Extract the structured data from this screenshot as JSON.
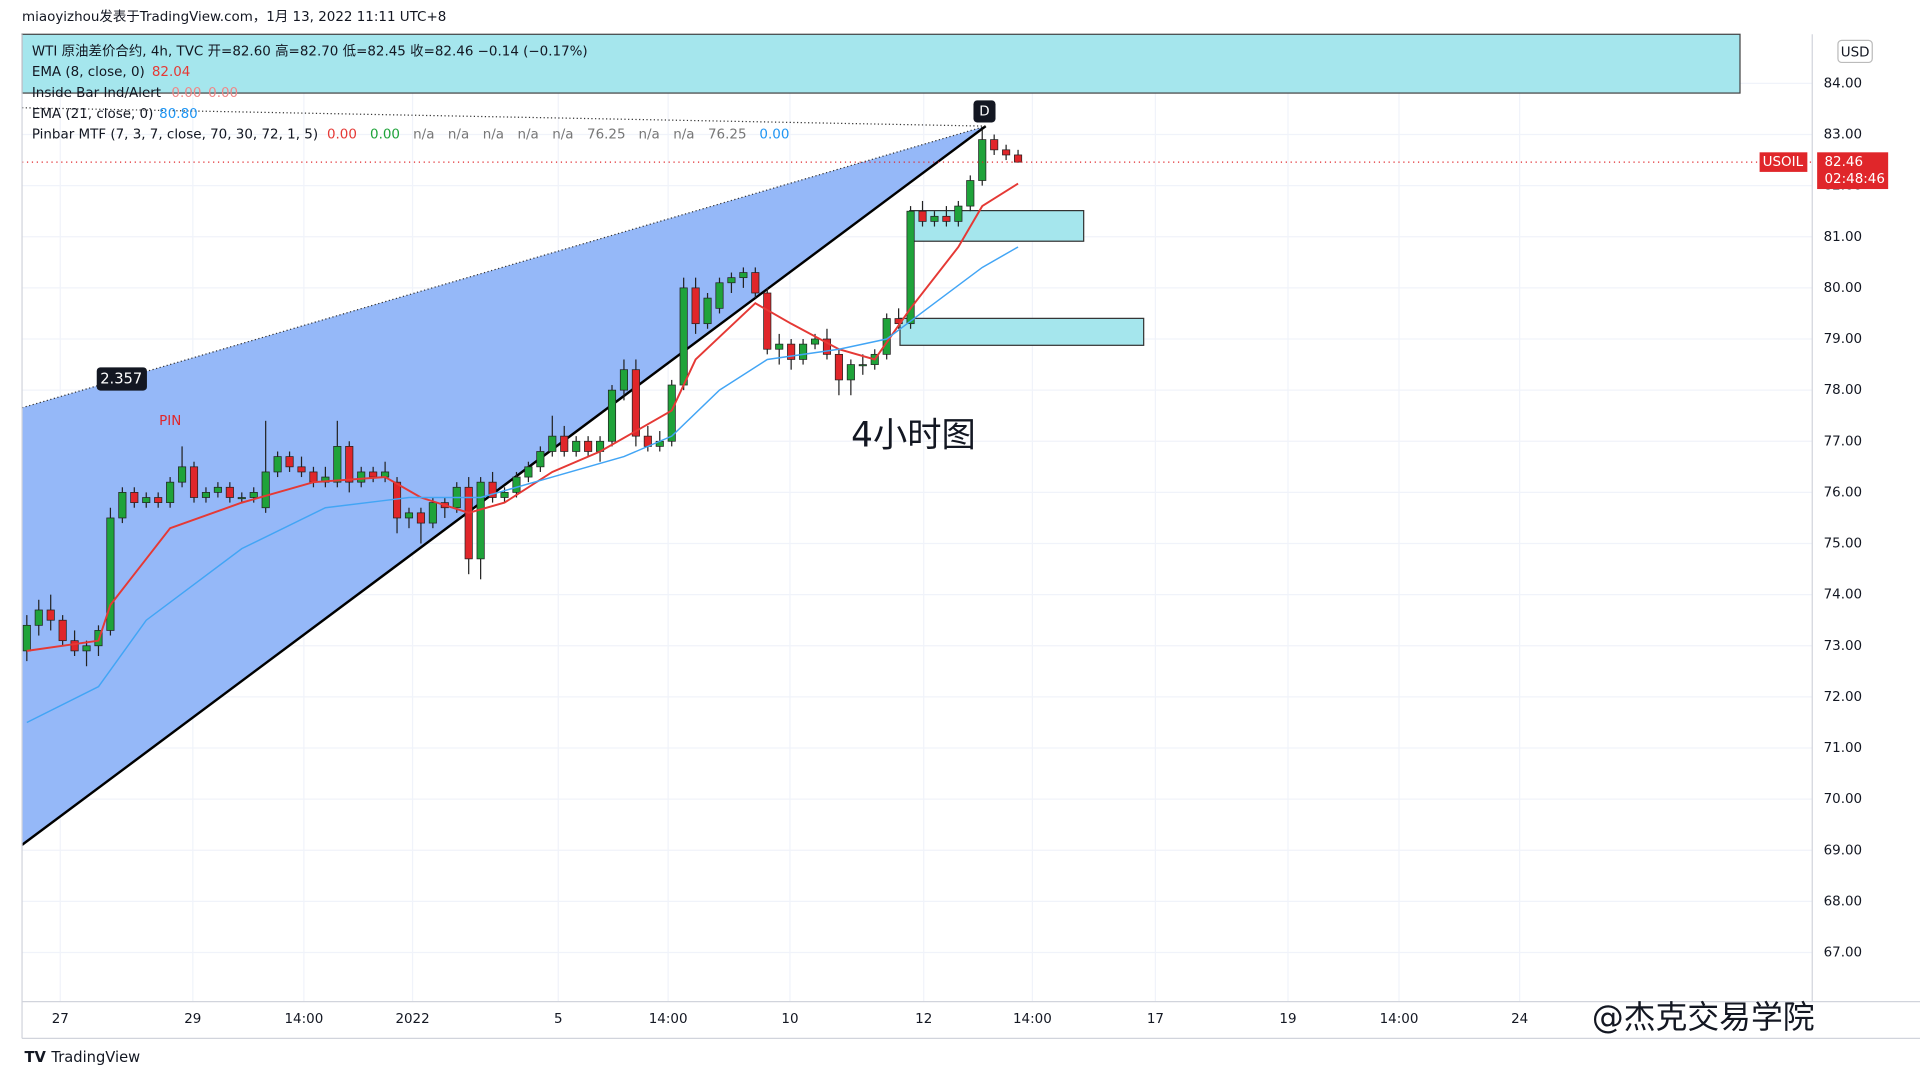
{
  "header": {
    "text": "miaoyizhou发表于TradingView.com，1月 13, 2022 11:11 UTC+8",
    "currency": "USD"
  },
  "legend": {
    "main": "WTI 原油差价合约, 4h, TVC  开=82.60  高=82.70  低=82.45  收=82.46  −0.14 (−0.17%)",
    "ema8_value": "82.04",
    "inside_bar": "Inside Bar Ind/Alert",
    "inside_bar_values": [
      "0.00",
      "0.00"
    ],
    "ema21_value": "80.80",
    "pinbar": "Pinbar MTF (7, 3, 7, close, 70, 30, 72, 1, 5)",
    "pinbar_values": [
      "0.00",
      "0.00",
      "n/a",
      "n/a",
      "n/a",
      "n/a",
      "n/a",
      "76.25",
      "n/a",
      "n/a",
      "76.25",
      "0.00"
    ],
    "pinbar_colors": [
      "#e53935",
      "#1fa33a",
      "#777",
      "#777",
      "#777",
      "#777",
      "#777",
      "#777",
      "#777",
      "#777",
      "#777",
      "#2196f3"
    ]
  },
  "chart_data": {
    "type": "candlestick",
    "symbol": "USOIL",
    "x": [
      0,
      1,
      2,
      3,
      4,
      5,
      6,
      7,
      8,
      9,
      10,
      11,
      12,
      13,
      14,
      15,
      16,
      17,
      18,
      19,
      20,
      21,
      22,
      23,
      24,
      25,
      26,
      27,
      28,
      29,
      30,
      31,
      32,
      33,
      34,
      35,
      36,
      37,
      38,
      39,
      40,
      41,
      42,
      43,
      44,
      45,
      46,
      47,
      48,
      49,
      50,
      51,
      52,
      53,
      54,
      55,
      56,
      57,
      58,
      59,
      60,
      61,
      62,
      63,
      64,
      65,
      66,
      67,
      68,
      69,
      70,
      71,
      72,
      73,
      74,
      75,
      76,
      77,
      78,
      79,
      80,
      81,
      82,
      83
    ],
    "open": [
      72.9,
      73.4,
      73.7,
      73.5,
      73.1,
      72.9,
      73.0,
      73.3,
      75.5,
      76.0,
      75.8,
      75.9,
      75.8,
      76.2,
      76.5,
      75.9,
      76.0,
      76.1,
      75.9,
      75.9,
      75.7,
      76.4,
      76.7,
      76.5,
      76.4,
      76.2,
      76.2,
      76.9,
      76.2,
      76.4,
      76.3,
      76.2,
      75.5,
      75.6,
      75.4,
      75.8,
      75.7,
      76.1,
      74.7,
      76.2,
      75.9,
      76.0,
      76.3,
      76.5,
      76.8,
      77.1,
      76.8,
      77.0,
      76.8,
      77.0,
      78.0,
      78.4,
      77.1,
      76.9,
      77.0,
      78.1,
      80.0,
      79.3,
      79.6,
      80.1,
      80.2,
      80.3,
      79.9,
      78.8,
      78.9,
      78.6,
      78.9,
      79.0,
      78.7,
      78.2,
      78.5,
      78.5,
      78.7,
      79.4,
      79.3,
      81.5,
      81.3,
      81.4,
      81.3,
      81.6,
      82.1,
      82.9,
      82.7,
      82.6
    ],
    "high": [
      73.6,
      73.9,
      74.0,
      73.6,
      73.3,
      73.1,
      73.4,
      75.7,
      76.1,
      76.1,
      76.0,
      76.0,
      76.3,
      76.9,
      76.6,
      76.1,
      76.2,
      76.2,
      76.0,
      76.1,
      77.4,
      76.8,
      76.8,
      76.7,
      76.5,
      76.5,
      77.4,
      77.0,
      76.5,
      76.5,
      76.6,
      76.3,
      75.7,
      75.7,
      75.9,
      75.9,
      76.2,
      76.3,
      76.3,
      76.4,
      76.1,
      76.4,
      76.6,
      76.9,
      77.5,
      77.3,
      77.1,
      77.1,
      77.1,
      78.1,
      78.6,
      78.6,
      77.3,
      77.2,
      78.2,
      80.2,
      80.2,
      79.9,
      80.2,
      80.3,
      80.4,
      80.4,
      80.0,
      79.1,
      79.0,
      79.0,
      79.1,
      79.2,
      78.8,
      78.6,
      78.7,
      78.8,
      79.5,
      79.6,
      81.6,
      81.7,
      81.5,
      81.6,
      81.7,
      82.2,
      83.1,
      83.0,
      82.8,
      82.7
    ],
    "low": [
      72.7,
      73.2,
      73.3,
      73.0,
      72.8,
      72.6,
      72.8,
      73.2,
      75.4,
      75.7,
      75.7,
      75.7,
      75.7,
      76.1,
      75.8,
      75.8,
      75.9,
      75.8,
      75.8,
      75.8,
      75.6,
      76.3,
      76.4,
      76.3,
      76.1,
      76.1,
      76.1,
      76.0,
      76.1,
      76.2,
      76.2,
      75.2,
      75.3,
      75.0,
      75.3,
      75.5,
      75.6,
      74.4,
      74.3,
      75.8,
      75.8,
      75.9,
      76.2,
      76.4,
      76.7,
      76.7,
      76.7,
      76.7,
      76.6,
      76.9,
      77.8,
      76.9,
      76.8,
      76.8,
      76.9,
      78.0,
      79.1,
      79.2,
      79.5,
      79.9,
      80.0,
      79.8,
      78.7,
      78.5,
      78.4,
      78.5,
      78.8,
      78.6,
      77.9,
      77.9,
      78.3,
      78.4,
      78.6,
      79.2,
      79.2,
      81.2,
      81.2,
      81.2,
      81.2,
      81.5,
      82.0,
      82.6,
      82.5,
      82.45
    ],
    "close": [
      73.4,
      73.7,
      73.5,
      73.1,
      72.9,
      73.0,
      73.3,
      75.5,
      76.0,
      75.8,
      75.9,
      75.8,
      76.2,
      76.5,
      75.9,
      76.0,
      76.1,
      75.9,
      75.9,
      76.0,
      76.4,
      76.7,
      76.5,
      76.4,
      76.2,
      76.3,
      76.9,
      76.2,
      76.4,
      76.3,
      76.4,
      75.5,
      75.6,
      75.4,
      75.8,
      75.7,
      76.1,
      74.7,
      76.2,
      75.9,
      76.0,
      76.3,
      76.5,
      76.8,
      77.1,
      76.8,
      77.0,
      76.8,
      77.0,
      78.0,
      78.4,
      77.1,
      76.9,
      77.0,
      78.1,
      80.0,
      79.3,
      79.8,
      80.1,
      80.2,
      80.3,
      79.9,
      78.8,
      78.9,
      78.6,
      78.9,
      79.0,
      78.7,
      78.2,
      78.5,
      78.5,
      78.7,
      79.4,
      79.3,
      81.5,
      81.3,
      81.4,
      81.3,
      81.6,
      82.1,
      82.9,
      82.7,
      82.6,
      82.46
    ],
    "up_color": "#1fa33a",
    "down_color": "#e0262a",
    "series": [
      {
        "name": "EMA (8, close, 0)",
        "color": "#e53935",
        "x": [
          0,
          6,
          7,
          12,
          18,
          24,
          30,
          33,
          37,
          40,
          44,
          48,
          51,
          54,
          56,
          61,
          64,
          68,
          71,
          74,
          78,
          80,
          83
        ],
        "values": [
          72.9,
          73.1,
          73.8,
          75.3,
          75.8,
          76.2,
          76.3,
          75.9,
          75.6,
          75.8,
          76.4,
          76.8,
          77.2,
          77.6,
          78.6,
          79.7,
          79.3,
          78.8,
          78.6,
          79.6,
          80.8,
          81.6,
          82.04
        ]
      },
      {
        "name": "EMA (21, close, 0)",
        "color": "#42a5f5",
        "x": [
          0,
          6,
          10,
          18,
          25,
          32,
          38,
          44,
          50,
          54,
          58,
          62,
          68,
          72,
          76,
          80,
          83
        ],
        "values": [
          71.5,
          72.2,
          73.5,
          74.9,
          75.7,
          75.9,
          75.9,
          76.3,
          76.7,
          77.1,
          78.0,
          78.6,
          78.8,
          79.0,
          79.7,
          80.4,
          80.8
        ]
      }
    ],
    "xlim": [
      -0.4,
      149.5
    ],
    "ylim": [
      66.04,
      84.96
    ],
    "xticks": [
      {
        "value": 2.8,
        "label": "27"
      },
      {
        "value": 13.9,
        "label": "29"
      },
      {
        "value": 23.2,
        "label": "14:00"
      },
      {
        "value": 32.3,
        "label": "2022"
      },
      {
        "value": 44.5,
        "label": "5"
      },
      {
        "value": 53.7,
        "label": "14:00"
      },
      {
        "value": 63.9,
        "label": "10"
      },
      {
        "value": 75.1,
        "label": "12"
      },
      {
        "value": 84.2,
        "label": "14:00"
      },
      {
        "value": 94.5,
        "label": "17"
      },
      {
        "value": 105.6,
        "label": "19"
      },
      {
        "value": 114.9,
        "label": "14:00"
      },
      {
        "value": 125,
        "label": "24"
      }
    ],
    "yticks": [
      {
        "value": 67,
        "label": "67.00"
      },
      {
        "value": 68,
        "label": "68.00"
      },
      {
        "value": 69,
        "label": "69.00"
      },
      {
        "value": 70,
        "label": "70.00"
      },
      {
        "value": 71,
        "label": "71.00"
      },
      {
        "value": 72,
        "label": "72.00"
      },
      {
        "value": 73,
        "label": "73.00"
      },
      {
        "value": 74,
        "label": "74.00"
      },
      {
        "value": 75,
        "label": "75.00"
      },
      {
        "value": 76,
        "label": "76.00"
      },
      {
        "value": 77,
        "label": "77.00"
      },
      {
        "value": 78,
        "label": "78.00"
      },
      {
        "value": 79,
        "label": "79.00"
      },
      {
        "value": 80,
        "label": "80.00"
      },
      {
        "value": 81,
        "label": "81.00"
      },
      {
        "value": 82,
        "label": "82.00"
      },
      {
        "value": 83,
        "label": "83.00"
      },
      {
        "value": 84,
        "label": "84.00"
      }
    ],
    "grid": true,
    "last_price": 82.46,
    "countdown": "02:48:46"
  },
  "annotations": {
    "ratio": 2.357,
    "point": "D",
    "pin": "PIN",
    "note": "4小时图"
  },
  "footer": {
    "logo": "TradingView",
    "watermark": "@杰克交易学院"
  }
}
